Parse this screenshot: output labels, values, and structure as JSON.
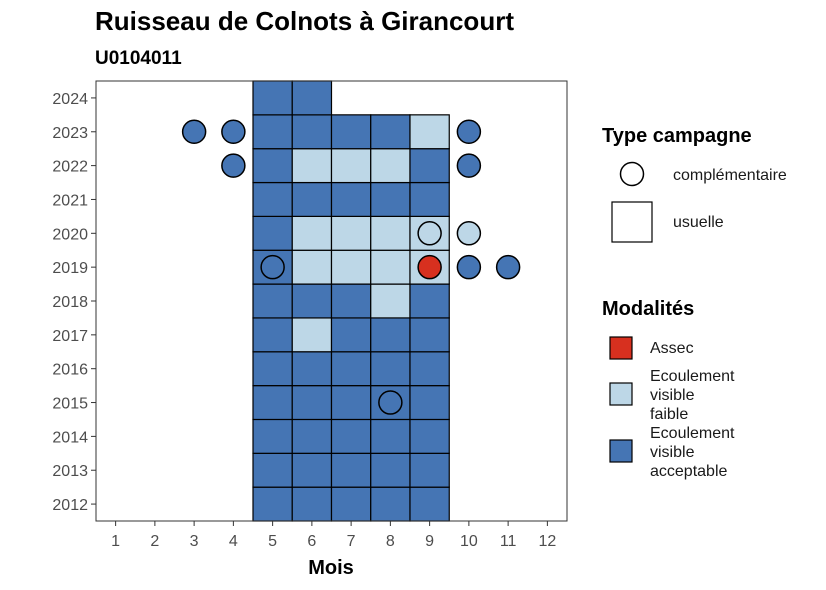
{
  "chart_data": {
    "type": "heatmap",
    "title": "Ruisseau de Colnots à Girancourt",
    "subtitle": "U0104011",
    "xlabel": "Mois",
    "ylabel": "",
    "x_ticks": [
      1,
      2,
      3,
      4,
      5,
      6,
      7,
      8,
      9,
      10,
      11,
      12
    ],
    "y_ticks": [
      2012,
      2013,
      2014,
      2015,
      2016,
      2017,
      2018,
      2019,
      2020,
      2021,
      2022,
      2023,
      2024
    ],
    "xlim": [
      0.5,
      12.5
    ],
    "ylim": [
      2011.5,
      2024.5
    ],
    "colors": {
      "Assec": "#d7301f",
      "Ecoulement visible faible": "#bdd7e7",
      "Ecoulement visible acceptable": "#4575b4"
    },
    "legend_type": {
      "title": "Type campagne",
      "items": [
        {
          "label": "complémentaire",
          "shape": "circle"
        },
        {
          "label": "usuelle",
          "shape": "square"
        }
      ]
    },
    "legend_modalites": {
      "title": "Modalités",
      "items": [
        {
          "label": [
            "Assec"
          ],
          "key": "Assec"
        },
        {
          "label": [
            "Ecoulement",
            "visible",
            "faible"
          ],
          "key": "Ecoulement visible faible"
        },
        {
          "label": [
            "Ecoulement",
            "visible",
            "acceptable"
          ],
          "key": "Ecoulement visible acceptable"
        }
      ]
    },
    "usuelle": [
      {
        "year": 2012,
        "months": [
          5,
          6,
          7,
          8,
          9
        ],
        "modalites": [
          "A",
          "A",
          "A",
          "A",
          "A"
        ]
      },
      {
        "year": 2013,
        "months": [
          5,
          6,
          7,
          8,
          9
        ],
        "modalites": [
          "A",
          "A",
          "A",
          "A",
          "A"
        ]
      },
      {
        "year": 2014,
        "months": [
          5,
          6,
          7,
          8,
          9
        ],
        "modalites": [
          "A",
          "A",
          "A",
          "A",
          "A"
        ]
      },
      {
        "year": 2015,
        "months": [
          5,
          6,
          7,
          8,
          9
        ],
        "modalites": [
          "A",
          "A",
          "A",
          "A",
          "A"
        ]
      },
      {
        "year": 2016,
        "months": [
          5,
          6,
          7,
          8,
          9
        ],
        "modalites": [
          "A",
          "A",
          "A",
          "A",
          "A"
        ]
      },
      {
        "year": 2017,
        "months": [
          5,
          6,
          7,
          8,
          9
        ],
        "modalites": [
          "A",
          "F",
          "A",
          "A",
          "A"
        ]
      },
      {
        "year": 2018,
        "months": [
          5,
          6,
          7,
          8,
          9
        ],
        "modalites": [
          "A",
          "A",
          "A",
          "F",
          "A"
        ]
      },
      {
        "year": 2019,
        "months": [
          5,
          6,
          7,
          8,
          9
        ],
        "modalites": [
          "A",
          "F",
          "F",
          "F",
          "F"
        ]
      },
      {
        "year": 2020,
        "months": [
          5,
          6,
          7,
          8,
          9
        ],
        "modalites": [
          "A",
          "F",
          "F",
          "F",
          "F"
        ]
      },
      {
        "year": 2021,
        "months": [
          5,
          6,
          7,
          8,
          9
        ],
        "modalites": [
          "A",
          "A",
          "A",
          "A",
          "A"
        ]
      },
      {
        "year": 2022,
        "months": [
          5,
          6,
          7,
          8,
          9
        ],
        "modalites": [
          "A",
          "F",
          "F",
          "F",
          "A"
        ]
      },
      {
        "year": 2023,
        "months": [
          5,
          6,
          7,
          8,
          9
        ],
        "modalites": [
          "A",
          "A",
          "A",
          "A",
          "F"
        ]
      },
      {
        "year": 2024,
        "months": [
          5,
          6
        ],
        "modalites": [
          "A",
          "A"
        ]
      }
    ],
    "complementaire": [
      {
        "year": 2023,
        "month": 3,
        "modalite": "A"
      },
      {
        "year": 2023,
        "month": 4,
        "modalite": "A"
      },
      {
        "year": 2023,
        "month": 10,
        "modalite": "A"
      },
      {
        "year": 2022,
        "month": 4,
        "modalite": "A"
      },
      {
        "year": 2022,
        "month": 10,
        "modalite": "A"
      },
      {
        "year": 2020,
        "month": 9,
        "modalite": "F"
      },
      {
        "year": 2020,
        "month": 10,
        "modalite": "F"
      },
      {
        "year": 2019,
        "month": 5,
        "modalite": "A"
      },
      {
        "year": 2019,
        "month": 9,
        "modalite": "Assec"
      },
      {
        "year": 2019,
        "month": 10,
        "modalite": "A"
      },
      {
        "year": 2019,
        "month": 11,
        "modalite": "A"
      },
      {
        "year": 2015,
        "month": 8,
        "modalite": "A"
      }
    ],
    "modalite_codes": {
      "A": "Ecoulement visible acceptable",
      "F": "Ecoulement visible faible",
      "Assec": "Assec"
    }
  }
}
